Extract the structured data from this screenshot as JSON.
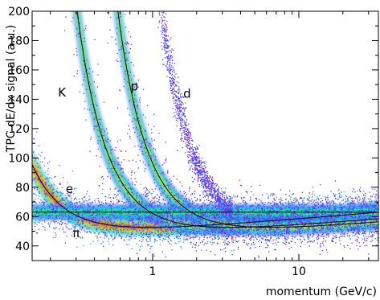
{
  "chart_data": {
    "type": "scatter",
    "title": "",
    "xlabel": "momentum (GeV/c)",
    "ylabel": "TPC dE/dx signal (a.u.)",
    "xscale": "log",
    "xlim": [
      0.15,
      35
    ],
    "ylim": [
      30,
      200
    ],
    "x_tick_labels": [
      {
        "v": 1,
        "label": "1"
      },
      {
        "v": 10,
        "label": "10"
      }
    ],
    "y_tick_labels": [
      {
        "v": 40,
        "label": "40"
      },
      {
        "v": 60,
        "label": "60"
      },
      {
        "v": 80,
        "label": "80"
      },
      {
        "v": 100,
        "label": "100"
      },
      {
        "v": 120,
        "label": "120"
      },
      {
        "v": 140,
        "label": "140"
      },
      {
        "v": 160,
        "label": "160"
      },
      {
        "v": 180,
        "label": "180"
      },
      {
        "v": 200,
        "label": "200"
      }
    ],
    "grid": false,
    "colormap": [
      "#7a2be0",
      "#3e52f2",
      "#23a9f2",
      "#2ee6c8",
      "#35e05a",
      "#c9ee30",
      "#f6c52a",
      "#f57a24",
      "#e5221c"
    ],
    "series": [
      {
        "name": "π",
        "mass": 0.1396
      },
      {
        "name": "K",
        "mass": 0.4937
      },
      {
        "name": "p",
        "mass": 0.9383
      },
      {
        "name": "d",
        "mass": 1.8756
      },
      {
        "name": "e",
        "mass": 0.000511
      }
    ],
    "annotations": [
      {
        "text": "K",
        "x": 0.24,
        "y": 142
      },
      {
        "text": "p",
        "x": 0.75,
        "y": 146
      },
      {
        "text": "d",
        "x": 1.72,
        "y": 141
      },
      {
        "text": "e",
        "x": 0.27,
        "y": 76
      },
      {
        "text": "π",
        "x": 0.3,
        "y": 46
      }
    ]
  }
}
